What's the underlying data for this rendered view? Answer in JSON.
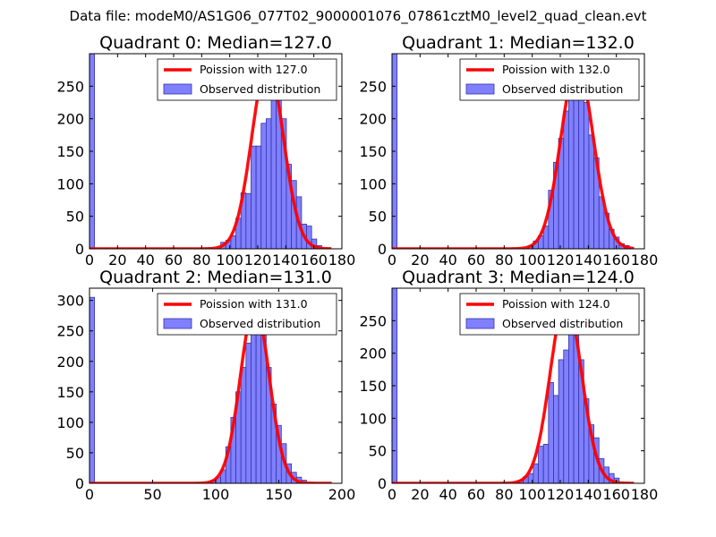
{
  "figure": {
    "suptitle": "Data file: modeM0/AS1G06_077T02_9000001076_07861cztM0_level2_quad_clean.evt"
  },
  "colors": {
    "bar_fill": "#8080ff",
    "bar_edge": "#3333aa",
    "poisson_line": "#ff0000"
  },
  "chart_data": [
    {
      "type": "bar",
      "title": "Quadrant 0: Median=127.0",
      "xlim": [
        0,
        180
      ],
      "ylim": [
        0,
        300
      ],
      "xticks": [
        0,
        20,
        40,
        60,
        80,
        100,
        120,
        140,
        160,
        180
      ],
      "yticks": [
        0,
        50,
        100,
        150,
        200,
        250
      ],
      "legend": {
        "placement": "top-right",
        "line_label": "Poission with 127.0",
        "bar_label": "Observed distribution"
      },
      "bin_width": 3.6,
      "zero_bin_count": 300,
      "bins": [
        {
          "x": 93.6,
          "count": 10
        },
        {
          "x": 97.2,
          "count": 13
        },
        {
          "x": 100.8,
          "count": 20
        },
        {
          "x": 104.4,
          "count": 47
        },
        {
          "x": 108.0,
          "count": 86
        },
        {
          "x": 111.6,
          "count": 85
        },
        {
          "x": 115.2,
          "count": 158
        },
        {
          "x": 118.8,
          "count": 158
        },
        {
          "x": 122.4,
          "count": 193
        },
        {
          "x": 126.0,
          "count": 200
        },
        {
          "x": 129.6,
          "count": 255
        },
        {
          "x": 133.2,
          "count": 287
        },
        {
          "x": 136.8,
          "count": 200
        },
        {
          "x": 140.4,
          "count": 130
        },
        {
          "x": 144.0,
          "count": 105
        },
        {
          "x": 147.6,
          "count": 80
        },
        {
          "x": 151.2,
          "count": 38
        },
        {
          "x": 154.8,
          "count": 35
        },
        {
          "x": 158.4,
          "count": 15
        },
        {
          "x": 162.0,
          "count": 5
        }
      ],
      "poisson_mean": 127.0,
      "poisson_peak": 284
    },
    {
      "type": "bar",
      "title": "Quadrant 1: Median=132.0",
      "xlim": [
        0,
        180
      ],
      "ylim": [
        0,
        300
      ],
      "xticks": [
        0,
        20,
        40,
        60,
        80,
        100,
        120,
        140,
        160,
        180
      ],
      "yticks": [
        0,
        50,
        100,
        150,
        200,
        250
      ],
      "legend": {
        "placement": "top-right",
        "line_label": "Poission with 132.0",
        "bar_label": "Observed distribution"
      },
      "bin_width": 3.6,
      "zero_bin_count": 300,
      "bins": [
        {
          "x": 97.2,
          "count": 5
        },
        {
          "x": 100.8,
          "count": 12
        },
        {
          "x": 104.4,
          "count": 20
        },
        {
          "x": 108.0,
          "count": 35
        },
        {
          "x": 111.6,
          "count": 90
        },
        {
          "x": 115.2,
          "count": 133
        },
        {
          "x": 118.8,
          "count": 170
        },
        {
          "x": 122.4,
          "count": 212
        },
        {
          "x": 126.0,
          "count": 243
        },
        {
          "x": 129.6,
          "count": 275
        },
        {
          "x": 133.2,
          "count": 287
        },
        {
          "x": 136.8,
          "count": 225
        },
        {
          "x": 140.4,
          "count": 175
        },
        {
          "x": 144.0,
          "count": 140
        },
        {
          "x": 147.6,
          "count": 80
        },
        {
          "x": 151.2,
          "count": 55
        },
        {
          "x": 154.8,
          "count": 30
        },
        {
          "x": 158.4,
          "count": 18
        },
        {
          "x": 162.0,
          "count": 8
        },
        {
          "x": 165.6,
          "count": 5
        }
      ],
      "poisson_mean": 132.0,
      "poisson_peak": 284
    },
    {
      "type": "bar",
      "title": "Quadrant 2: Median=131.0",
      "xlim": [
        0,
        200
      ],
      "ylim": [
        0,
        320
      ],
      "xticks": [
        0,
        50,
        100,
        150,
        200
      ],
      "yticks": [
        0,
        50,
        100,
        150,
        200,
        250,
        300
      ],
      "legend": {
        "placement": "top-right",
        "line_label": "Poission with 131.0",
        "bar_label": "Observed distribution"
      },
      "bin_width": 4.0,
      "zero_bin_count": 305,
      "bins": [
        {
          "x": 96.0,
          "count": 5
        },
        {
          "x": 100.0,
          "count": 10
        },
        {
          "x": 104.0,
          "count": 22
        },
        {
          "x": 108.0,
          "count": 60
        },
        {
          "x": 112.0,
          "count": 108
        },
        {
          "x": 116.0,
          "count": 150
        },
        {
          "x": 120.0,
          "count": 190
        },
        {
          "x": 124.0,
          "count": 230
        },
        {
          "x": 128.0,
          "count": 282
        },
        {
          "x": 132.0,
          "count": 292
        },
        {
          "x": 136.0,
          "count": 250
        },
        {
          "x": 140.0,
          "count": 190
        },
        {
          "x": 144.0,
          "count": 130
        },
        {
          "x": 148.0,
          "count": 95
        },
        {
          "x": 152.0,
          "count": 65
        },
        {
          "x": 156.0,
          "count": 32
        },
        {
          "x": 160.0,
          "count": 18
        },
        {
          "x": 164.0,
          "count": 10
        },
        {
          "x": 168.0,
          "count": 5
        }
      ],
      "poisson_mean": 131.0,
      "poisson_peak": 290
    },
    {
      "type": "bar",
      "title": "Quadrant 3: Median=124.0",
      "xlim": [
        0,
        180
      ],
      "ylim": [
        0,
        300
      ],
      "xticks": [
        0,
        20,
        40,
        60,
        80,
        100,
        120,
        140,
        160,
        180
      ],
      "yticks": [
        0,
        50,
        100,
        150,
        200,
        250
      ],
      "legend": {
        "placement": "top-right",
        "line_label": "Poission with 124.0",
        "bar_label": "Observed distribution"
      },
      "bin_width": 3.6,
      "zero_bin_count": 300,
      "bins": [
        {
          "x": 90.0,
          "count": 5
        },
        {
          "x": 93.6,
          "count": 10
        },
        {
          "x": 97.2,
          "count": 15
        },
        {
          "x": 100.8,
          "count": 30
        },
        {
          "x": 104.4,
          "count": 57
        },
        {
          "x": 108.0,
          "count": 60
        },
        {
          "x": 111.6,
          "count": 155
        },
        {
          "x": 115.2,
          "count": 135
        },
        {
          "x": 118.8,
          "count": 190
        },
        {
          "x": 122.4,
          "count": 205
        },
        {
          "x": 126.0,
          "count": 245
        },
        {
          "x": 129.6,
          "count": 265
        },
        {
          "x": 133.2,
          "count": 190
        },
        {
          "x": 136.8,
          "count": 130
        },
        {
          "x": 140.4,
          "count": 90
        },
        {
          "x": 144.0,
          "count": 70
        },
        {
          "x": 147.6,
          "count": 38
        },
        {
          "x": 151.2,
          "count": 25
        },
        {
          "x": 154.8,
          "count": 15
        },
        {
          "x": 158.4,
          "count": 8
        }
      ],
      "poisson_mean": 124.0,
      "poisson_peak": 282
    }
  ]
}
